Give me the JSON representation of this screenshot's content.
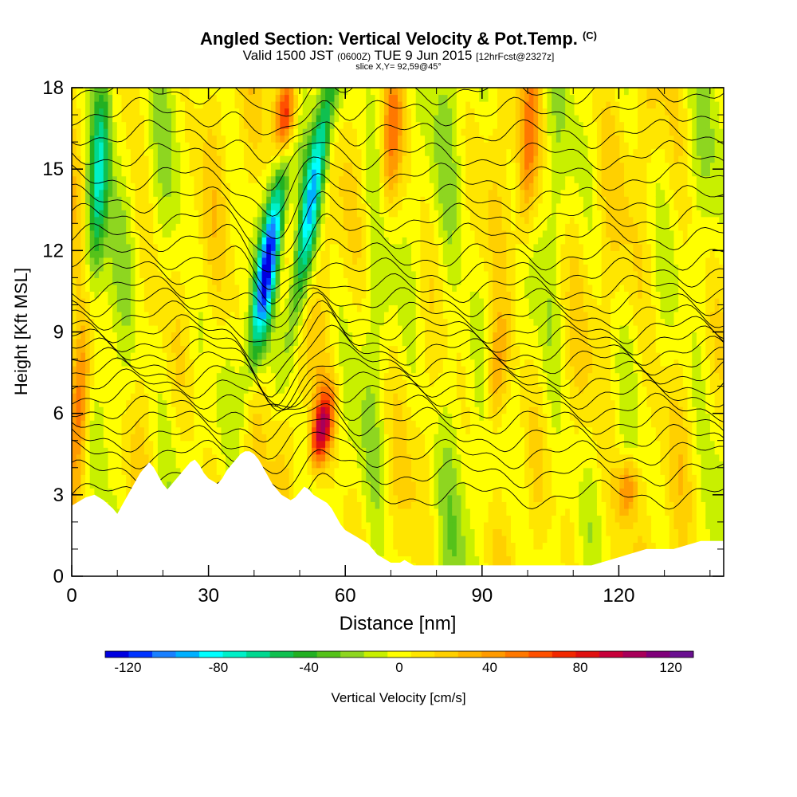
{
  "titles": {
    "main": "Angled Section: Vertical Velocity & Pot.Temp.",
    "main_unit": "(C)",
    "valid_prefix": "Valid 1500 JST",
    "valid_z": "(0600Z)",
    "valid_date": "TUE 9 Jun 2015",
    "forecast": "[12hrFcst@2327z]",
    "slice": "slice X,Y= 92,59@45°"
  },
  "chart_data": {
    "type": "heatmap",
    "xlabel": "Distance [nm]",
    "ylabel": "Height [Kft MSL]",
    "xlim": [
      0,
      143
    ],
    "ylim": [
      0,
      18
    ],
    "x_ticks": [
      0,
      30,
      60,
      90,
      120
    ],
    "x_tick_labels": [
      "0",
      "30",
      "60",
      "90",
      "120"
    ],
    "y_ticks": [
      0,
      3,
      6,
      9,
      12,
      15,
      18
    ],
    "y_tick_labels": [
      "0",
      "3",
      "6",
      "9",
      "12",
      "15",
      "18"
    ],
    "colorbar": {
      "label": "Vertical Velocity [cm/s]",
      "range": [
        -130,
        130
      ],
      "tick_values": [
        -120,
        -80,
        -40,
        0,
        40,
        80,
        120
      ],
      "tick_labels": [
        "-120",
        "-80",
        "-40",
        "0",
        "40",
        "80",
        "120"
      ],
      "colors": [
        "#0000e0",
        "#0033ff",
        "#1a80ff",
        "#00b0ff",
        "#00ffff",
        "#00f0c8",
        "#00d890",
        "#10c050",
        "#22b022",
        "#55c21a",
        "#8ed620",
        "#c8f000",
        "#ffff00",
        "#ffe600",
        "#ffd000",
        "#ffb400",
        "#ff9a00",
        "#ff7800",
        "#ff5000",
        "#f22800",
        "#e01010",
        "#c8003a",
        "#a8005a",
        "#80007a",
        "#6a1090"
      ]
    },
    "terrain_profile": {
      "x": [
        0,
        3,
        5,
        7,
        9,
        10,
        11,
        12,
        13,
        14,
        15,
        16,
        17,
        18,
        19,
        20,
        21,
        22,
        23,
        24,
        25,
        26,
        27,
        28,
        29,
        30,
        31,
        32,
        33,
        34,
        35,
        36,
        37,
        38,
        39,
        40,
        41,
        42,
        43,
        44,
        45,
        46,
        47,
        48,
        49,
        50,
        51,
        52,
        53,
        54,
        55,
        56,
        57,
        58,
        59,
        60,
        61,
        62,
        63,
        64,
        65,
        66,
        67,
        68,
        69,
        70,
        71,
        72,
        73,
        74,
        75,
        76,
        77,
        78,
        79,
        80,
        81,
        82,
        83,
        84,
        85,
        86,
        88,
        90,
        92,
        94,
        96,
        98,
        100,
        102,
        104,
        106,
        108,
        110,
        112,
        114,
        116,
        118,
        120,
        122,
        124,
        126,
        128,
        130,
        132,
        134,
        136,
        138,
        140,
        143
      ],
      "height": [
        2.6,
        2.9,
        3.0,
        2.8,
        2.5,
        2.3,
        2.6,
        2.9,
        3.2,
        3.5,
        3.8,
        4.0,
        4.2,
        4.0,
        3.7,
        3.4,
        3.2,
        3.4,
        3.6,
        3.8,
        4.0,
        4.2,
        4.3,
        4.1,
        3.8,
        3.6,
        3.5,
        3.4,
        3.6,
        3.9,
        4.1,
        4.3,
        4.5,
        4.6,
        4.6,
        4.5,
        4.3,
        4.0,
        3.7,
        3.4,
        3.2,
        3.0,
        2.9,
        2.8,
        2.9,
        3.1,
        3.3,
        3.2,
        3.0,
        2.9,
        2.8,
        2.7,
        2.5,
        2.2,
        1.9,
        1.7,
        1.6,
        1.5,
        1.4,
        1.3,
        1.2,
        1.0,
        0.8,
        0.7,
        0.6,
        0.5,
        0.5,
        0.5,
        0.6,
        0.5,
        0.4,
        0.4,
        0.4,
        0.4,
        0.4,
        0.4,
        0.4,
        0.4,
        0.4,
        0.4,
        0.4,
        0.4,
        0.4,
        0.4,
        0.4,
        0.4,
        0.4,
        0.4,
        0.4,
        0.4,
        0.4,
        0.4,
        0.4,
        0.4,
        0.4,
        0.4,
        0.5,
        0.6,
        0.7,
        0.8,
        0.9,
        1.0,
        1.0,
        1.0,
        1.0,
        1.1,
        1.2,
        1.3,
        1.3,
        1.3
      ],
      "units": "Kft MSL"
    },
    "vertical_velocity_features": [
      {
        "x": 43,
        "y_range": [
          9,
          14
        ],
        "peak": -120
      },
      {
        "x": 53,
        "y_range": [
          10.5,
          18
        ],
        "peak": -90
      },
      {
        "x": 47,
        "y_range": [
          16,
          18
        ],
        "peak": 80
      },
      {
        "x": 55,
        "y_range": [
          4.5,
          6.5
        ],
        "peak": 90
      },
      {
        "x": 2,
        "y_range": [
          4.5,
          9
        ],
        "peak": 60
      },
      {
        "x": 6,
        "y_range": [
          12,
          18
        ],
        "peak": -70
      },
      {
        "x": 70,
        "y_range": [
          14,
          18
        ],
        "peak": 40
      },
      {
        "x": 100,
        "y_range": [
          13,
          18
        ],
        "peak": 45
      },
      {
        "x": 93,
        "y_range": [
          6,
          9
        ],
        "peak": 40
      },
      {
        "x": 122,
        "y_range": [
          2.5,
          4
        ],
        "peak": 45
      }
    ],
    "potential_temperature_contours": {
      "units": "C",
      "base_heights": [
        3.0,
        3.8,
        4.5,
        5.1,
        5.7,
        6.2,
        6.7,
        7.1,
        7.5,
        7.9,
        8.3,
        8.7,
        9.1,
        9.6,
        10.1,
        10.6,
        11.2,
        11.8,
        12.5,
        13.2,
        13.9,
        14.7,
        15.5,
        16.3,
        17.1,
        17.9
      ]
    }
  }
}
